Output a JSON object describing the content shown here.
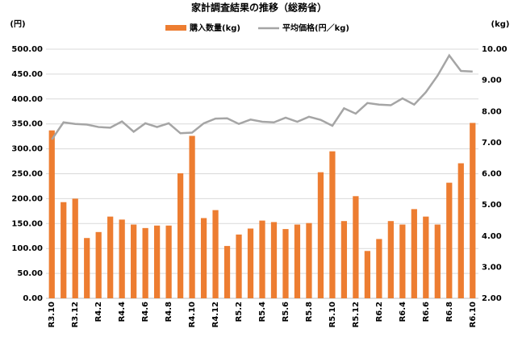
{
  "chart_data": {
    "type": "bar-line",
    "title": "家計調査結果の推移（総務省）",
    "y_label": "(円)",
    "y2_label": "(kg)",
    "categories": [
      "R3.10",
      null,
      "R3.12",
      null,
      "R4.2",
      null,
      "R4.4",
      null,
      "R4.6",
      null,
      "R4.8",
      null,
      "R4.10",
      null,
      "R4.12",
      null,
      "R5.2",
      null,
      "R5.4",
      null,
      "R5.6",
      null,
      "R5.8",
      null,
      "R5.10",
      null,
      "R5.12",
      null,
      "R6.2",
      null,
      "R6.4",
      null,
      "R6.6",
      null,
      "R6.8",
      null,
      "R6.10"
    ],
    "series": [
      {
        "name": "購入数量(kg)",
        "color": "#ed7d31",
        "type": "bar",
        "axis": "y2",
        "values": [
          337,
          193,
          200,
          121,
          133,
          164,
          158,
          148,
          141,
          146,
          146,
          251,
          326,
          161,
          177,
          105,
          128,
          140,
          156,
          153,
          139,
          148,
          151,
          253,
          295,
          155,
          205,
          95,
          119,
          155,
          148,
          179,
          164,
          148,
          232,
          271,
          352
        ]
      },
      {
        "name": "平均価格(円／kg)",
        "color": "#a5a5a5",
        "type": "line",
        "axis": "y",
        "values": [
          7.1,
          7.65,
          7.6,
          7.58,
          7.5,
          7.48,
          7.68,
          7.35,
          7.62,
          7.5,
          7.62,
          7.3,
          7.32,
          7.62,
          7.77,
          7.78,
          7.6,
          7.74,
          7.67,
          7.65,
          7.8,
          7.67,
          7.83,
          7.73,
          7.54,
          8.1,
          7.93,
          8.27,
          8.22,
          8.2,
          8.42,
          8.22,
          8.62,
          9.15,
          9.8,
          9.3,
          9.28
        ]
      }
    ],
    "ylim": [
      0,
      500
    ],
    "yticks": [
      {
        "value": 0,
        "label": "0.00"
      },
      {
        "value": 50,
        "label": "50.00"
      },
      {
        "value": 100,
        "label": "100.00"
      },
      {
        "value": 150,
        "label": "150.00"
      },
      {
        "value": 200,
        "label": "200.00"
      },
      {
        "value": 250,
        "label": "250.00"
      },
      {
        "value": 300,
        "label": "300.00"
      },
      {
        "value": 350,
        "label": "350.00"
      },
      {
        "value": 400,
        "label": "400.00"
      },
      {
        "value": 450,
        "label": "450.00"
      },
      {
        "value": 500,
        "label": "500.00"
      }
    ],
    "y2lim": [
      2,
      10
    ],
    "y2ticks": [
      {
        "value": 2,
        "label": "2.00"
      },
      {
        "value": 3,
        "label": "3.00"
      },
      {
        "value": 4,
        "label": "4.00"
      },
      {
        "value": 5,
        "label": "5.00"
      },
      {
        "value": 6,
        "label": "6.00"
      },
      {
        "value": 7,
        "label": "7.00"
      },
      {
        "value": 8,
        "label": "8.00"
      },
      {
        "value": 9,
        "label": "9.00"
      },
      {
        "value": 10,
        "label": "10.00"
      }
    ],
    "grid": true,
    "legend": "top"
  }
}
